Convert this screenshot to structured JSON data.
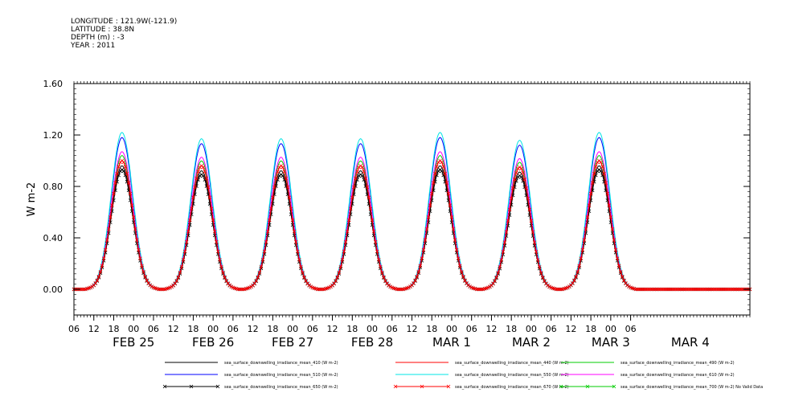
{
  "meta": {
    "longitude": "LONGITUDE : 121.9W(-121.9)",
    "latitude": "LATITUDE : 38.8N",
    "depth": "DEPTH (m) : -3",
    "year": "YEAR : 2011"
  },
  "chart_data": {
    "type": "line",
    "title": "",
    "xlabel": "",
    "ylabel": "W m-2",
    "ylim": [
      -0.2,
      1.6
    ],
    "yticks": [
      0.0,
      0.4,
      0.8,
      1.2,
      1.6
    ],
    "ytick_labels": [
      "0.00",
      "0.40",
      "0.80",
      "1.20",
      "1.60"
    ],
    "x_range_hours": [
      0,
      204
    ],
    "hour_tick_labels": [
      "06",
      "12",
      "18",
      "00",
      "06",
      "12",
      "18",
      "00",
      "06",
      "12",
      "18",
      "00",
      "06",
      "12",
      "18",
      "00",
      "06",
      "12",
      "18",
      "00",
      "06",
      "12",
      "18",
      "00",
      "06",
      "12",
      "18",
      "00",
      "06"
    ],
    "date_labels": [
      "FEB 25",
      "FEB 26",
      "FEB 27",
      "FEB 28",
      "MAR  1",
      "MAR  2",
      "MAR  3",
      "MAR  4"
    ],
    "grid": false,
    "legend_position": "bottom",
    "day_peaks_rel": [
      1.0,
      0.96,
      0.96,
      0.96,
      1.0,
      0.95,
      1.0
    ],
    "series": [
      {
        "name": "sea_surface_downwelling_irradiance_mean_410 (W m-2)",
        "color": "#000000",
        "marker": "",
        "peak": 0.96
      },
      {
        "name": "sea_surface_downwelling_irradiance_mean_440 (W m-2)",
        "color": "#ff0000",
        "marker": "",
        "peak": 1.0
      },
      {
        "name": "sea_surface_downwelling_irradiance_mean_490 (W m-2)",
        "color": "#00cc00",
        "marker": "",
        "peak": 1.04
      },
      {
        "name": "sea_surface_downwelling_irradiance_mean_510 (W m-2)",
        "color": "#0000ff",
        "marker": "",
        "peak": 1.18
      },
      {
        "name": "sea_surface_downwelling_irradiance_mean_550 (W m-2)",
        "color": "#00e5e5",
        "marker": "",
        "peak": 1.22
      },
      {
        "name": "sea_surface_downwelling_irradiance_mean_610 (W m-2)",
        "color": "#ff00ff",
        "marker": "",
        "peak": 1.07
      },
      {
        "name": "sea_surface_downwelling_irradiance_mean_650 (W m-2)",
        "color": "#000000",
        "marker": "x",
        "peak": 0.93
      },
      {
        "name": "sea_surface_downwelling_irradiance_mean_670 (W m-2)",
        "color": "#ff0000",
        "marker": "x",
        "peak": 1.0
      },
      {
        "name": "sea_surface_downwelling_irradiance_mean_700 (W m-2) No Valid Data",
        "color": "#00cc00",
        "marker": "x",
        "peak": 0
      }
    ]
  }
}
